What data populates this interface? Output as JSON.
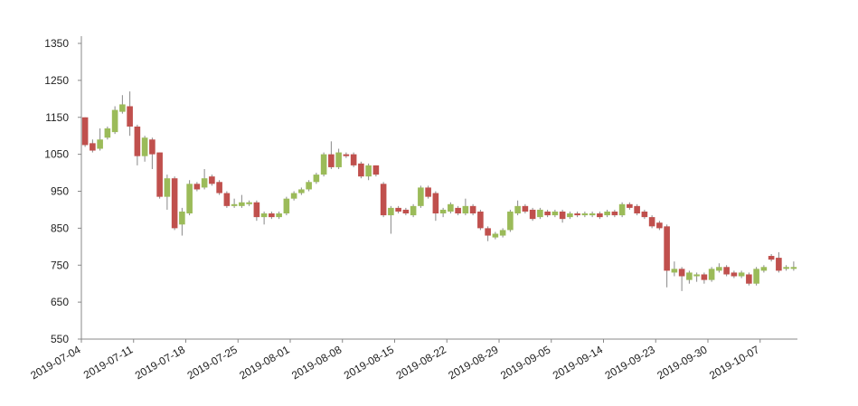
{
  "chart_data": {
    "type": "candlestick",
    "categories": [
      "2019-07-04",
      null,
      null,
      null,
      null,
      null,
      null,
      "2019-07-11",
      null,
      null,
      null,
      null,
      null,
      null,
      "2019-07-18",
      null,
      null,
      null,
      null,
      null,
      null,
      "2019-07-25",
      null,
      null,
      null,
      null,
      null,
      null,
      "2019-08-01",
      null,
      null,
      null,
      null,
      null,
      null,
      "2019-08-08",
      null,
      null,
      null,
      null,
      null,
      null,
      "2019-08-15",
      null,
      null,
      null,
      null,
      null,
      null,
      "2019-08-22",
      null,
      null,
      null,
      null,
      null,
      null,
      "2019-08-29",
      null,
      null,
      null,
      null,
      null,
      null,
      "2019-09-05",
      null,
      null,
      null,
      null,
      null,
      null,
      "2019-09-14",
      null,
      null,
      null,
      null,
      null,
      null,
      "2019-09-23",
      null,
      null,
      null,
      null,
      null,
      null,
      "2019-09-30",
      null,
      null,
      null,
      null,
      null,
      null,
      "2019-10-07",
      null,
      null,
      null,
      null
    ],
    "open": [
      1150,
      1080,
      1065,
      1095,
      1110,
      1165,
      1180,
      1125,
      1045,
      1090,
      1055,
      935,
      985,
      860,
      890,
      970,
      960,
      990,
      975,
      945,
      910,
      910,
      915,
      920,
      880,
      890,
      880,
      890,
      930,
      945,
      955,
      975,
      995,
      1050,
      1015,
      1050,
      1050,
      1025,
      990,
      1020,
      970,
      885,
      905,
      900,
      885,
      910,
      960,
      945,
      890,
      895,
      905,
      890,
      910,
      895,
      850,
      825,
      830,
      845,
      890,
      910,
      900,
      880,
      895,
      885,
      895,
      880,
      890,
      885,
      885,
      890,
      885,
      895,
      885,
      915,
      910,
      895,
      880,
      865,
      855,
      730,
      740,
      710,
      720,
      725,
      710,
      735,
      745,
      730,
      720,
      725,
      700,
      735,
      775,
      770,
      740,
      740
    ],
    "high": [
      1150,
      1090,
      1120,
      1125,
      1180,
      1210,
      1220,
      1130,
      1100,
      1095,
      1055,
      995,
      990,
      905,
      980,
      975,
      1010,
      995,
      980,
      950,
      930,
      940,
      925,
      925,
      895,
      895,
      895,
      935,
      950,
      960,
      980,
      1000,
      1055,
      1085,
      1065,
      1055,
      1055,
      1030,
      1025,
      1020,
      975,
      910,
      910,
      905,
      915,
      965,
      965,
      950,
      905,
      920,
      910,
      930,
      915,
      900,
      855,
      840,
      850,
      900,
      925,
      915,
      905,
      905,
      900,
      900,
      900,
      895,
      895,
      895,
      895,
      895,
      900,
      900,
      920,
      920,
      915,
      900,
      885,
      870,
      860,
      760,
      745,
      735,
      730,
      730,
      745,
      755,
      750,
      735,
      735,
      730,
      745,
      750,
      780,
      785,
      750,
      760
    ],
    "low": [
      1070,
      1055,
      1060,
      1090,
      1105,
      1160,
      1100,
      1020,
      1030,
      1010,
      930,
      900,
      845,
      830,
      885,
      950,
      955,
      965,
      940,
      905,
      905,
      905,
      910,
      870,
      860,
      875,
      875,
      885,
      925,
      940,
      950,
      970,
      990,
      1010,
      1010,
      1040,
      1015,
      985,
      980,
      990,
      880,
      835,
      890,
      885,
      880,
      905,
      930,
      870,
      880,
      890,
      885,
      885,
      885,
      845,
      815,
      820,
      825,
      840,
      885,
      890,
      870,
      875,
      880,
      880,
      865,
      875,
      880,
      880,
      880,
      875,
      880,
      880,
      880,
      900,
      885,
      875,
      850,
      845,
      690,
      720,
      680,
      700,
      705,
      700,
      705,
      730,
      720,
      715,
      715,
      695,
      695,
      730,
      760,
      730,
      735,
      735
    ],
    "close": [
      1075,
      1060,
      1090,
      1120,
      1170,
      1185,
      1125,
      1045,
      1095,
      1050,
      935,
      985,
      850,
      895,
      970,
      955,
      985,
      970,
      945,
      910,
      915,
      920,
      920,
      880,
      890,
      880,
      890,
      930,
      945,
      955,
      975,
      995,
      1050,
      1015,
      1055,
      1045,
      1020,
      990,
      1020,
      995,
      885,
      905,
      895,
      890,
      910,
      960,
      935,
      890,
      900,
      915,
      890,
      910,
      890,
      850,
      830,
      835,
      845,
      895,
      910,
      895,
      875,
      900,
      885,
      895,
      875,
      890,
      885,
      890,
      890,
      880,
      895,
      885,
      915,
      905,
      890,
      880,
      855,
      850,
      735,
      740,
      720,
      730,
      725,
      710,
      740,
      745,
      725,
      720,
      730,
      700,
      740,
      745,
      765,
      735,
      745,
      745
    ],
    "up_color": "#9bbb59",
    "down_color": "#c0504d",
    "ylim": [
      550,
      1350
    ],
    "yticks": [
      550,
      650,
      750,
      850,
      950,
      1050,
      1150,
      1250,
      1350
    ]
  }
}
